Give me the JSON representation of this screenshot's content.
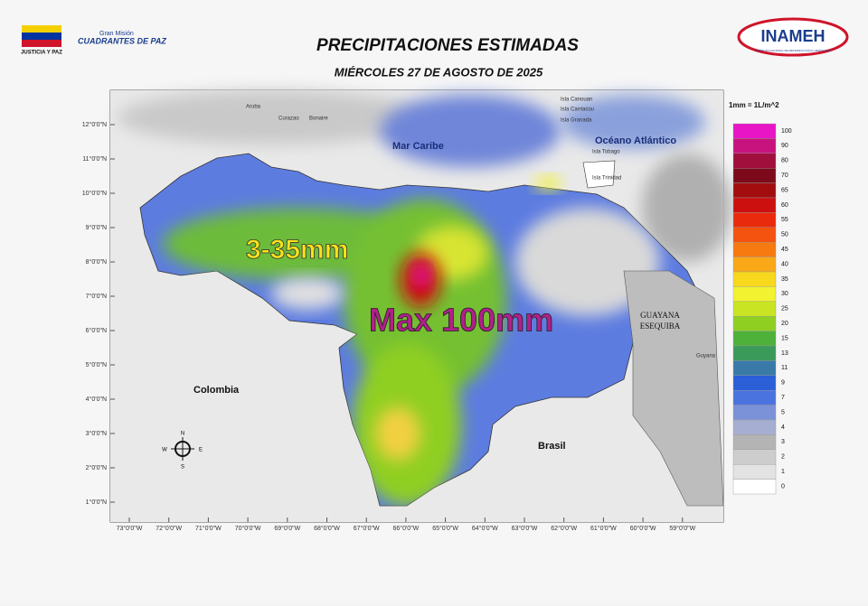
{
  "header": {
    "left_logo_caption": "JUSTICIA Y PAZ",
    "mission_small": "Gran Misión",
    "mission_large": "CUADRANTES DE PAZ",
    "right_logo": "INAMEH",
    "right_logo_caption": "INSTITUTO NACIONAL DE METEOROLOGÍA E HIDROLOGÍA",
    "title": "PRECIPITACIONES ESTIMADAS",
    "subtitle": "MIÉRCOLES 27 DE AGOSTO DE 2025"
  },
  "map": {
    "lat_ticks": [
      "12°0'0\"N",
      "11°0'0\"N",
      "10°0'0\"N",
      "9°0'0\"N",
      "8°0'0\"N",
      "7°0'0\"N",
      "6°0'0\"N",
      "5°0'0\"N",
      "4°0'0\"N",
      "3°0'0\"N",
      "2°0'0\"N",
      "1°0'0\"N"
    ],
    "lon_ticks": [
      "73°0'0\"W",
      "72°0'0\"W",
      "71°0'0\"W",
      "70°0'0\"W",
      "69°0'0\"W",
      "68°0'0\"W",
      "67°0'0\"W",
      "66°0'0\"W",
      "65°0'0\"W",
      "64°0'0\"W",
      "63°0'0\"W",
      "62°0'0\"W",
      "61°0'0\"W",
      "60°0'0\"W",
      "59°0'0\"W"
    ],
    "places": {
      "sea": "Mar Caribe",
      "ocean": "Océano Atlántico",
      "colombia": "Colombia",
      "brasil": "Brasil",
      "esequiba_1": "GUAYANA",
      "esequiba_2": "ESEQUIBA",
      "guyana": "Guyana",
      "aruba": "Aruba",
      "curazao": "Curazao",
      "bonaire": "Bonaire",
      "trinidad": "Isla Trinidad",
      "tobago": "Isla Tobago",
      "grenada": "Isla Granada",
      "canouan": "Isla Canouan",
      "carriacou": "Isla Carriacou"
    },
    "annotations": {
      "range": "3-35mm",
      "max": "Max 100mm"
    },
    "compass": {
      "n": "N",
      "s": "S",
      "e": "E",
      "w": "W"
    }
  },
  "legend": {
    "title": "1mm = 1L/m^2",
    "levels": [
      {
        "value": 100,
        "color": "#e815c6"
      },
      {
        "value": 90,
        "color": "#c8137e"
      },
      {
        "value": 80,
        "color": "#a10f3c"
      },
      {
        "value": 70,
        "color": "#7d0a1a"
      },
      {
        "value": 65,
        "color": "#a30d0d"
      },
      {
        "value": 60,
        "color": "#cc1010"
      },
      {
        "value": 55,
        "color": "#ea2a0c"
      },
      {
        "value": 50,
        "color": "#f3520f"
      },
      {
        "value": 45,
        "color": "#f77a10"
      },
      {
        "value": 40,
        "color": "#f9a818"
      },
      {
        "value": 35,
        "color": "#f7d81c"
      },
      {
        "value": 30,
        "color": "#f2f230"
      },
      {
        "value": 25,
        "color": "#c8e422"
      },
      {
        "value": 20,
        "color": "#8fcf22"
      },
      {
        "value": 15,
        "color": "#4eb13a"
      },
      {
        "value": 13,
        "color": "#3a9a5a"
      },
      {
        "value": 11,
        "color": "#3a7aa8"
      },
      {
        "value": 9,
        "color": "#2a5fd8"
      },
      {
        "value": 7,
        "color": "#4b73e0"
      },
      {
        "value": 5,
        "color": "#7b92d8"
      },
      {
        "value": 4,
        "color": "#a6afd2"
      },
      {
        "value": 3,
        "color": "#b4b4b4"
      },
      {
        "value": 2,
        "color": "#cdcdcd"
      },
      {
        "value": 1,
        "color": "#e3e3e3"
      },
      {
        "value": 0,
        "color": "#ffffff"
      }
    ]
  }
}
